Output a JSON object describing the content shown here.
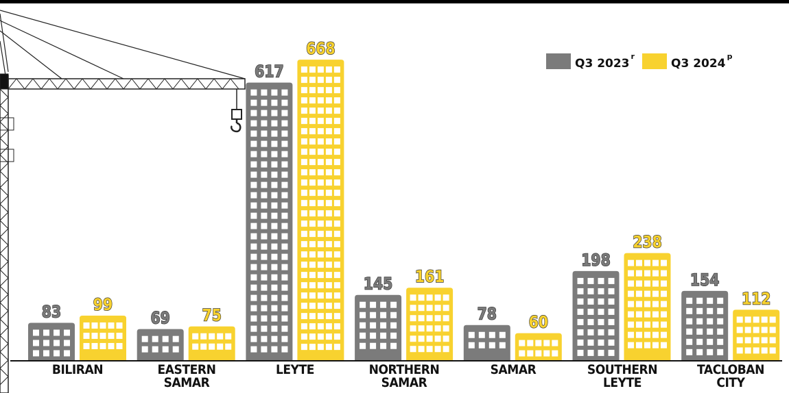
{
  "chart_data": {
    "type": "bar",
    "categories": [
      "BILIRAN",
      "EASTERN\nSAMAR",
      "LEYTE",
      "NORTHERN\nSAMAR",
      "SAMAR",
      "SOUTHERN\nLEYTE",
      "TACLOBAN\nCITY"
    ],
    "series": [
      {
        "name": "Q3 2023",
        "superscript": "r",
        "color": "#7b7b7b",
        "values": [
          83,
          69,
          617,
          145,
          78,
          198,
          154
        ]
      },
      {
        "name": "Q3 2024",
        "superscript": "p",
        "color": "#f8d22f",
        "values": [
          99,
          75,
          668,
          161,
          60,
          238,
          112
        ]
      }
    ],
    "legend": "top-right"
  }
}
